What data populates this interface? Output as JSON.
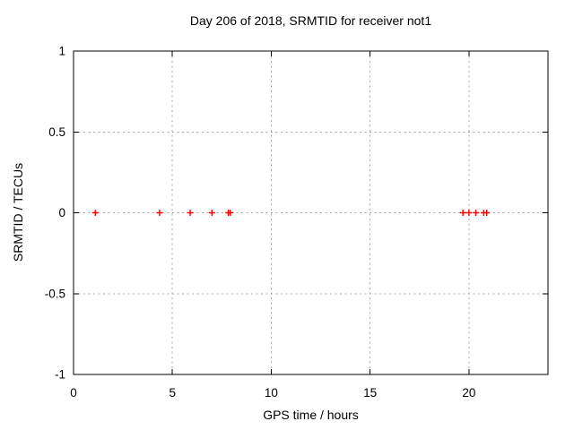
{
  "title": "Day 206 of 2018, SRMTID for receiver not1",
  "chart_data": {
    "type": "scatter",
    "title": "Day 206 of 2018, SRMTID for receiver not1",
    "xlabel": "GPS time / hours",
    "ylabel": "SRMTID / TECUs",
    "xlim": [
      0,
      24
    ],
    "ylim": [
      -1,
      1
    ],
    "xticks": [
      0,
      5,
      10,
      15,
      20
    ],
    "xtick_labels": [
      "0",
      "5",
      "10",
      "15",
      "20"
    ],
    "yticks": [
      -1,
      -0.5,
      0,
      0.5,
      1
    ],
    "ytick_labels": [
      "-1",
      "-0.5",
      "0",
      "0.5",
      "1"
    ],
    "grid": true,
    "legend_position": "none",
    "marker": "plus",
    "marker_color": "#ff0000",
    "axis_color": "#000000",
    "grid_color": "#a8a8a8",
    "background_color": "#ffffff",
    "series": [
      {
        "name": "SRMTID",
        "x": [
          1.1,
          4.35,
          5.9,
          7.0,
          7.83,
          7.93,
          19.7,
          20.0,
          20.35,
          20.75,
          20.9
        ],
        "y": [
          0,
          0,
          0,
          0,
          0,
          0,
          0,
          0,
          0,
          0,
          0
        ]
      }
    ]
  }
}
